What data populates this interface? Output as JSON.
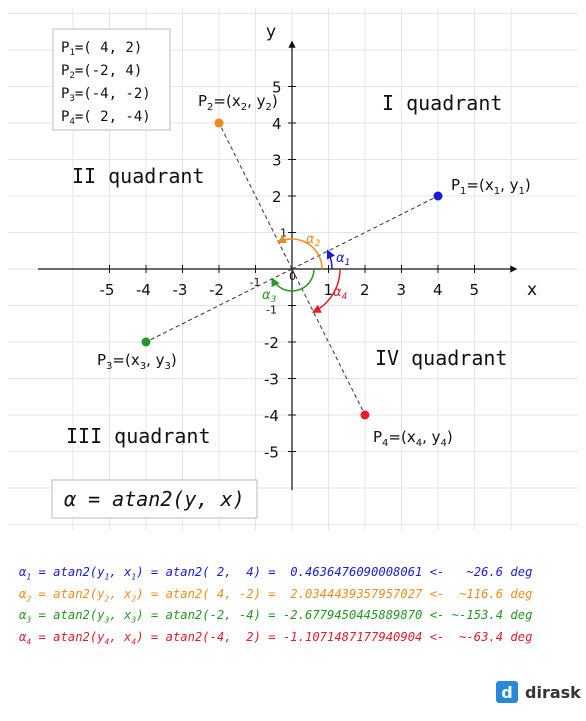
{
  "axes": {
    "x_label": "x",
    "y_label": "y",
    "origin": "0",
    "x_ticks": [
      "-5",
      "-4",
      "-3",
      "-2",
      "-1",
      "1",
      "2",
      "3",
      "4",
      "5"
    ],
    "y_ticks": [
      "-5",
      "-4",
      "-3",
      "-2",
      "-1",
      "1",
      "2",
      "3",
      "4",
      "5"
    ]
  },
  "legend": [
    {
      "sub": "1",
      "val": "( 4,  2)"
    },
    {
      "sub": "2",
      "val": "(-2,  4)"
    },
    {
      "sub": "3",
      "val": "(-4, -2)"
    },
    {
      "sub": "4",
      "val": "( 2, -4)"
    }
  ],
  "quadrants": {
    "q1": "I quadrant",
    "q2": "II quadrant",
    "q3": "III quadrant",
    "q4": "IV quadrant"
  },
  "points": [
    {
      "sub": "1",
      "x": 4,
      "y": 2,
      "color": "#1a1adb"
    },
    {
      "sub": "2",
      "x": -2,
      "y": 4,
      "color": "#f08c1c"
    },
    {
      "sub": "3",
      "x": -4,
      "y": -2,
      "color": "#229922"
    },
    {
      "sub": "4",
      "x": 2,
      "y": -4,
      "color": "#e61b2b"
    }
  ],
  "formula": "α = atan2(y, x)",
  "equations": [
    {
      "sub": "1",
      "args": "( 2,  4)",
      "result": "0.4636476090008061",
      "approx": "~26.6 deg",
      "color": "#1a1adb"
    },
    {
      "sub": "2",
      "args": "( 4, -2)",
      "result": "2.0344439357957027",
      "approx": "~116.6 deg",
      "color": "#f08c1c"
    },
    {
      "sub": "3",
      "args": "(-2, -4)",
      "result": "-2.6779450445889870",
      "approx": "~-153.4 deg",
      "color": "#229922"
    },
    {
      "sub": "4",
      "args": "(-4,  2)",
      "result": "-1.1071487177940904",
      "approx": "~-63.4 deg",
      "color": "#e61b2b"
    }
  ],
  "brand": {
    "logo": "d",
    "name": "dirask"
  }
}
